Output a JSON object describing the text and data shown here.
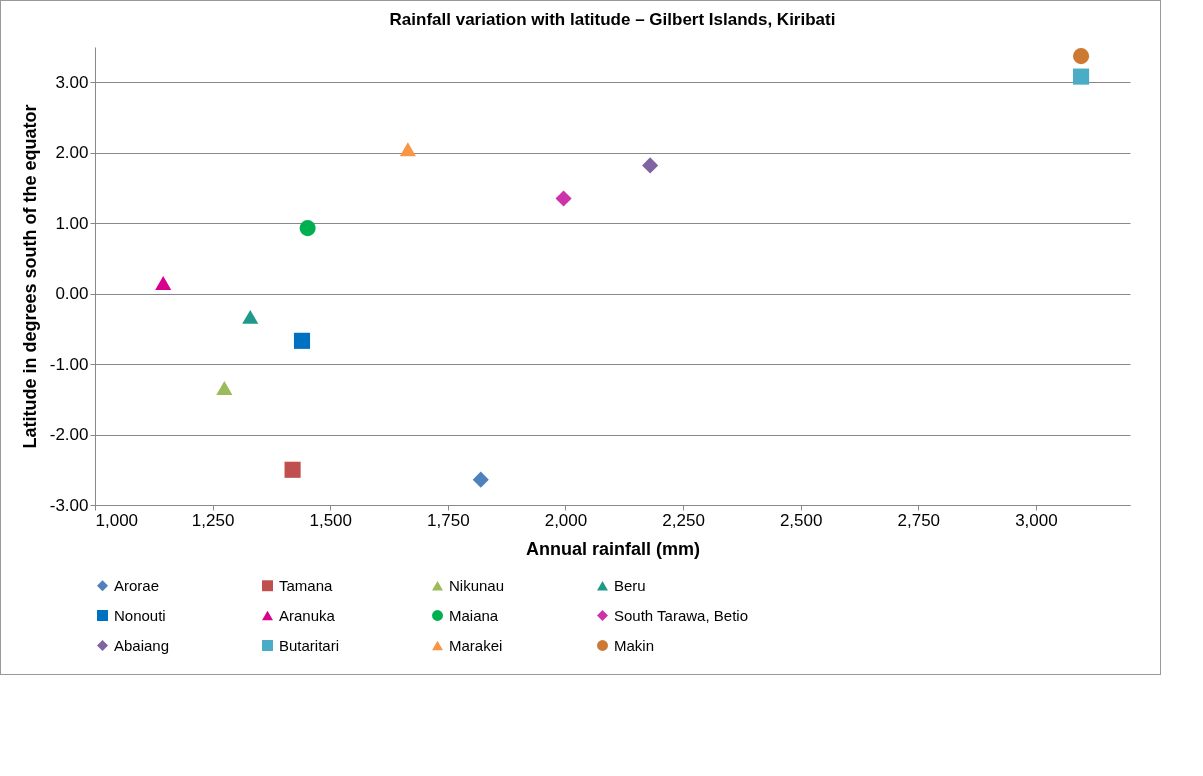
{
  "chart_data": {
    "type": "scatter",
    "title": "Rainfall variation with latitude – Gilbert Islands, Kiribati",
    "xlabel": "Annual rainfall (mm)",
    "ylabel": "Latitude in degrees south of the equator",
    "xlim": [
      1000,
      3200
    ],
    "ylim": [
      -3,
      3.5
    ],
    "xticks": [
      {
        "value": 1000,
        "label": "1,000"
      },
      {
        "value": 1250,
        "label": "1,250"
      },
      {
        "value": 1500,
        "label": "1,500"
      },
      {
        "value": 1750,
        "label": "1,750"
      },
      {
        "value": 2000,
        "label": "2,000"
      },
      {
        "value": 2250,
        "label": "2,250"
      },
      {
        "value": 2500,
        "label": "2,500"
      },
      {
        "value": 2750,
        "label": "2,750"
      },
      {
        "value": 3000,
        "label": "3,000"
      }
    ],
    "yticks": [
      {
        "value": -3,
        "label": "-3.00"
      },
      {
        "value": -2,
        "label": "-2.00"
      },
      {
        "value": -1,
        "label": "-1.00"
      },
      {
        "value": 0,
        "label": "0.00"
      },
      {
        "value": 1,
        "label": "1.00"
      },
      {
        "value": 2,
        "label": "2.00"
      },
      {
        "value": 3,
        "label": "3.00"
      }
    ],
    "grid": "y",
    "legend": "bottom",
    "series": [
      {
        "name": "Arorae",
        "color": "#4f81bd",
        "marker": "diamond",
        "x": [
          1820
        ],
        "values": [
          -2.64
        ]
      },
      {
        "name": "Tamana",
        "color": "#c0504d",
        "marker": "square",
        "x": [
          1420
        ],
        "values": [
          -2.5
        ]
      },
      {
        "name": "Nikunau",
        "color": "#9bbb59",
        "marker": "triangle",
        "x": [
          1275
        ],
        "values": [
          -1.34
        ]
      },
      {
        "name": "Beru",
        "color": "#1f9a8a",
        "marker": "triangle",
        "x": [
          1330
        ],
        "values": [
          -0.33
        ]
      },
      {
        "name": "Nonouti",
        "color": "#0070c0",
        "marker": "square",
        "x": [
          1440
        ],
        "values": [
          -0.67
        ]
      },
      {
        "name": "Aranuka",
        "color": "#d6008c",
        "marker": "triangle",
        "x": [
          1145
        ],
        "values": [
          0.15
        ]
      },
      {
        "name": "Maiana",
        "color": "#00b050",
        "marker": "circle",
        "x": [
          1452
        ],
        "values": [
          0.93
        ]
      },
      {
        "name": "South Tarawa, Betio",
        "color": "#cc33aa",
        "marker": "diamond",
        "x": [
          1996
        ],
        "values": [
          1.35
        ]
      },
      {
        "name": "Abaiang",
        "color": "#8064a2",
        "marker": "diamond",
        "x": [
          2180
        ],
        "values": [
          1.82
        ]
      },
      {
        "name": "Butaritari",
        "color": "#4bacc6",
        "marker": "square",
        "x": [
          3096
        ],
        "values": [
          3.08
        ]
      },
      {
        "name": "Marakei",
        "color": "#f79646",
        "marker": "triangle",
        "x": [
          1665
        ],
        "values": [
          2.05
        ]
      },
      {
        "name": "Makin",
        "color": "#cc7a33",
        "marker": "circle",
        "x": [
          3096
        ],
        "values": [
          3.37
        ]
      }
    ]
  }
}
